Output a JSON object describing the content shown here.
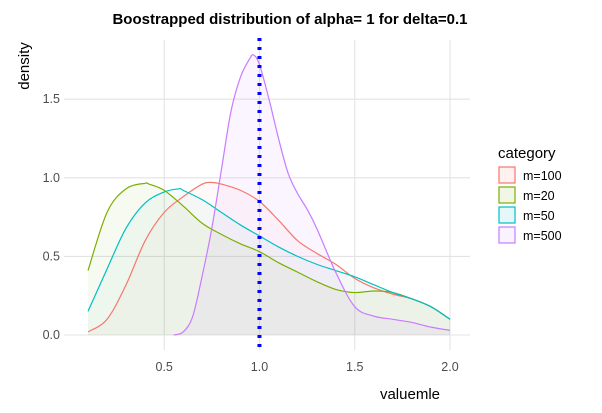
{
  "chart_data": {
    "type": "area",
    "title": "Boostrapped distribution of alpha= 1 for delta=0.1",
    "xlabel": "valuemle",
    "ylabel": "density",
    "xlim": [
      0.1,
      2.0
    ],
    "ylim": [
      0.0,
      1.8
    ],
    "x_ticks": [
      0.5,
      1.0,
      1.5,
      2.0
    ],
    "x_tick_labels": [
      "0.5",
      "1.0",
      "1.5",
      "2.0"
    ],
    "y_ticks": [
      0.0,
      0.5,
      1.0,
      1.5
    ],
    "y_tick_labels": [
      "0.0",
      "0.5",
      "1.0",
      "1.5"
    ],
    "grid": true,
    "legend_title": "category",
    "legend_position": "right",
    "vline": {
      "x": 1.0,
      "color": "#0000ff",
      "style": "dotted"
    },
    "series": [
      {
        "name": "m=100",
        "color": "#f8766d",
        "fill_opacity": 0.04,
        "x": [
          0.1,
          0.2,
          0.3,
          0.4,
          0.5,
          0.6,
          0.7,
          0.75,
          0.8,
          0.9,
          1.0,
          1.1,
          1.2,
          1.3,
          1.4,
          1.5,
          1.6,
          1.7,
          1.8,
          1.9,
          2.0
        ],
        "y": [
          0.02,
          0.1,
          0.32,
          0.6,
          0.78,
          0.88,
          0.96,
          0.97,
          0.96,
          0.92,
          0.85,
          0.73,
          0.6,
          0.52,
          0.45,
          0.36,
          0.3,
          0.26,
          0.23,
          0.18,
          0.1
        ]
      },
      {
        "name": "m=20",
        "color": "#7cae00",
        "fill_opacity": 0.06,
        "x": [
          0.1,
          0.2,
          0.3,
          0.4,
          0.42,
          0.5,
          0.6,
          0.7,
          0.8,
          0.9,
          1.0,
          1.1,
          1.2,
          1.3,
          1.4,
          1.5,
          1.6,
          1.7,
          1.8,
          1.9,
          2.0
        ],
        "y": [
          0.41,
          0.78,
          0.93,
          0.965,
          0.96,
          0.92,
          0.82,
          0.71,
          0.64,
          0.58,
          0.53,
          0.46,
          0.4,
          0.34,
          0.29,
          0.27,
          0.28,
          0.27,
          0.23,
          0.18,
          0.1
        ]
      },
      {
        "name": "m=50",
        "color": "#00bfc4",
        "fill_opacity": 0.04,
        "x": [
          0.1,
          0.2,
          0.3,
          0.4,
          0.5,
          0.58,
          0.6,
          0.7,
          0.8,
          0.9,
          1.0,
          1.1,
          1.2,
          1.3,
          1.4,
          1.5,
          1.6,
          1.7,
          1.8,
          1.9,
          2.0
        ],
        "y": [
          0.15,
          0.42,
          0.68,
          0.84,
          0.91,
          0.93,
          0.92,
          0.86,
          0.78,
          0.7,
          0.63,
          0.56,
          0.5,
          0.45,
          0.41,
          0.37,
          0.32,
          0.27,
          0.23,
          0.18,
          0.1
        ]
      },
      {
        "name": "m=500",
        "color": "#c77cff",
        "fill_opacity": 0.08,
        "x": [
          0.55,
          0.6,
          0.65,
          0.7,
          0.75,
          0.8,
          0.85,
          0.9,
          0.95,
          0.97,
          1.0,
          1.05,
          1.1,
          1.15,
          1.2,
          1.25,
          1.3,
          1.4,
          1.5,
          1.6,
          1.7,
          1.8,
          1.9,
          2.0
        ],
        "y": [
          0.0,
          0.02,
          0.12,
          0.38,
          0.68,
          1.05,
          1.42,
          1.64,
          1.76,
          1.78,
          1.72,
          1.5,
          1.25,
          1.03,
          0.9,
          0.8,
          0.68,
          0.4,
          0.18,
          0.12,
          0.1,
          0.08,
          0.05,
          0.03
        ]
      }
    ]
  }
}
